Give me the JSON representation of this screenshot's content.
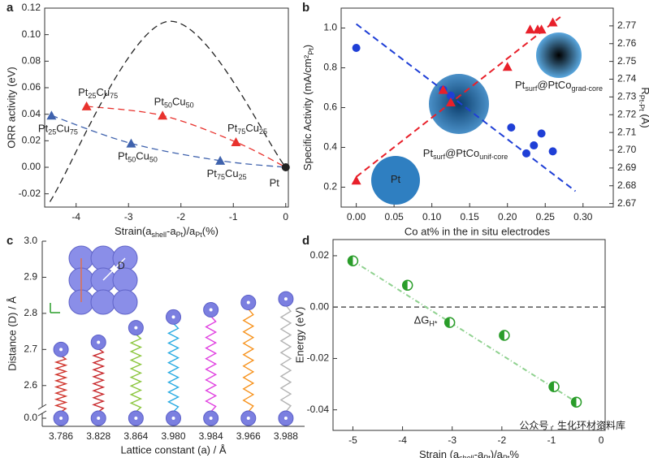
{
  "chart_data": [
    {
      "type": "line",
      "panel_label": "a",
      "ylabel": "ORR activity (eV)",
      "xlabel": [
        "Strain(a",
        "shell",
        "-a",
        "Pt",
        ")/a",
        "Pt",
        "(%)"
      ],
      "xlim": [
        -4.6,
        0.05
      ],
      "xticks": [
        -4,
        -3,
        -2,
        -1,
        0
      ],
      "ylim": [
        -0.03,
        0.12
      ],
      "yticks": [
        -0.02,
        {
          "value": 0,
          "label": "0.00"
        },
        0.02,
        0.04,
        0.06,
        0.08,
        {
          "value": 0.1,
          "label": "0.10"
        },
        0.12
      ],
      "series": [
        {
          "color": "#e8322d",
          "marker": "triangle",
          "line": "dashed",
          "x": [
            -3.8,
            -2.35,
            -0.95
          ],
          "values": [
            0.046,
            0.039,
            0.019
          ],
          "point_labels": [
            [
              "Pt",
              "25",
              "Cu",
              "75"
            ],
            [
              "Pt",
              "50",
              "Cu",
              "50"
            ],
            [
              "Pt",
              "75",
              "Cu",
              "25"
            ]
          ]
        },
        {
          "color": "#3f62ad",
          "marker": "triangle",
          "line": "dashed",
          "x": [
            -4.47,
            -2.95,
            -1.25
          ],
          "values": [
            0.039,
            0.018,
            0.005
          ],
          "point_labels": [
            [
              "Pt",
              "25",
              "Cu",
              "75"
            ],
            [
              "Pt",
              "50",
              "Cu",
              "50"
            ],
            [
              "Pt",
              "75",
              "Cu",
              "25"
            ]
          ]
        },
        {
          "color": "#222222",
          "marker": "circle",
          "x": [
            0
          ],
          "values": [
            0
          ],
          "point_labels": [
            "Pt"
          ]
        },
        {
          "color": "#222222",
          "marker": "none",
          "line": "dashed",
          "x": [
            -4.5,
            -2.25,
            0
          ],
          "values": [
            -0.026,
            0.11,
            0
          ]
        }
      ]
    },
    {
      "type": "scatter",
      "panel_label": "b",
      "ylabel": [
        "Specific Activity (mA/cm²",
        "Pt",
        ")"
      ],
      "y2label": [
        "R",
        "Pt-Pt",
        " (Å)"
      ],
      "xlabel": "Co at% in the in situ electrodes",
      "xlim": [
        -0.02,
        0.34
      ],
      "xticks": [
        {
          "value": 0,
          "label": "0.00"
        },
        0.05,
        {
          "value": 0.1,
          "label": "0.10"
        },
        0.15,
        {
          "value": 0.2,
          "label": "0.20"
        },
        0.25,
        {
          "value": 0.3,
          "label": "0.30"
        }
      ],
      "ylim": [
        0.1,
        1.1
      ],
      "yticks": [
        0.2,
        0.4,
        0.6,
        0.8,
        {
          "value": 1,
          "label": "1.0"
        }
      ],
      "y2lim": [
        2.668,
        2.78
      ],
      "y2ticks": [
        2.67,
        2.68,
        2.69,
        {
          "value": 2.7,
          "label": "2.70"
        },
        2.71,
        2.72,
        2.73,
        2.74,
        2.75,
        2.76,
        2.77
      ],
      "series": [
        {
          "color": "#1f3fd6",
          "marker": "circle",
          "axis": "y",
          "x": [
            0,
            0.115,
            0.125,
            0.205,
            0.225,
            0.235,
            0.245,
            0.26
          ],
          "values": [
            0.9,
            0.69,
            0.66,
            0.5,
            0.37,
            0.41,
            0.47,
            0.38
          ]
        },
        {
          "color": "#e8202a",
          "marker": "triangle",
          "axis": "y2",
          "x": [
            0,
            0.115,
            0.125,
            0.2,
            0.23,
            0.24,
            0.245,
            0.26
          ],
          "values": [
            2.683,
            2.734,
            2.727,
            2.747,
            2.768,
            2.768,
            2.768,
            2.772
          ]
        },
        {
          "color": "#1f3fd6",
          "marker": "none",
          "line": "dashed",
          "axis": "y",
          "x": [
            0,
            0.29
          ],
          "values": [
            1.02,
            0.18
          ]
        },
        {
          "color": "#e8202a",
          "marker": "none",
          "line": "dashed",
          "axis": "y2",
          "x": [
            0,
            0.27
          ],
          "values": [
            2.685,
            2.775
          ]
        }
      ],
      "illustrations": [
        [
          "Pt"
        ],
        [
          "Pt",
          "surf",
          "@PtCo",
          "unif-core"
        ],
        [
          "Pt",
          "surf",
          "@PtCo",
          "grad-core"
        ]
      ]
    },
    {
      "type": "spring",
      "panel_label": "c",
      "ylabel": "Distance (D) / Å",
      "xlabel": "Lattice constant (a) / Å",
      "inset_label": "D",
      "categories": [
        "3.786",
        "3.828",
        "3.864",
        "3.980",
        "3.984",
        "3.966",
        "3.988"
      ],
      "values": [
        2.7,
        2.72,
        2.76,
        2.79,
        2.81,
        2.83,
        2.84
      ],
      "colors": [
        "#d0342c",
        "#c8282c",
        "#8cc63f",
        "#29abe2",
        "#e040e0",
        "#f7931e",
        "#b3b3b3"
      ],
      "ylim": [
        2.55,
        3.0
      ],
      "yticks": [
        {
          "value": 0,
          "label": "0.0"
        },
        2.6,
        2.7,
        2.8,
        2.9,
        {
          "value": 3,
          "label": "3.0"
        }
      ]
    },
    {
      "type": "scatter",
      "panel_label": "d",
      "ylabel": "Energy (eV)",
      "xlabel": [
        "Strain (a",
        "shell",
        "-a",
        "Pt",
        ")/a",
        "Pt",
        "%"
      ],
      "xlim": [
        -5.4,
        0.08
      ],
      "xticks": [
        -5,
        -4,
        -3,
        -2,
        -1,
        0
      ],
      "ylim": [
        -0.048,
        0.0263
      ],
      "yticks": [
        -0.04,
        -0.02,
        {
          "value": 0,
          "label": "0.00"
        },
        0.02
      ],
      "hline": 0,
      "annotation": [
        "ΔG",
        "H*"
      ],
      "series": [
        {
          "color": "#2a9d2a",
          "marker": "half",
          "x": [
            -5,
            -3.9,
            -3.05,
            -1.95,
            -0.95,
            -0.5
          ],
          "values": [
            0.018,
            0.0085,
            -0.006,
            -0.011,
            -0.031,
            -0.037
          ]
        },
        {
          "color": "#8fd18f",
          "marker": "none",
          "line": "dashdot",
          "x": [
            -5,
            -0.5
          ],
          "values": [
            0.018,
            -0.037
          ]
        }
      ]
    }
  ],
  "watermark": "公众号 · 生化环材资料库"
}
